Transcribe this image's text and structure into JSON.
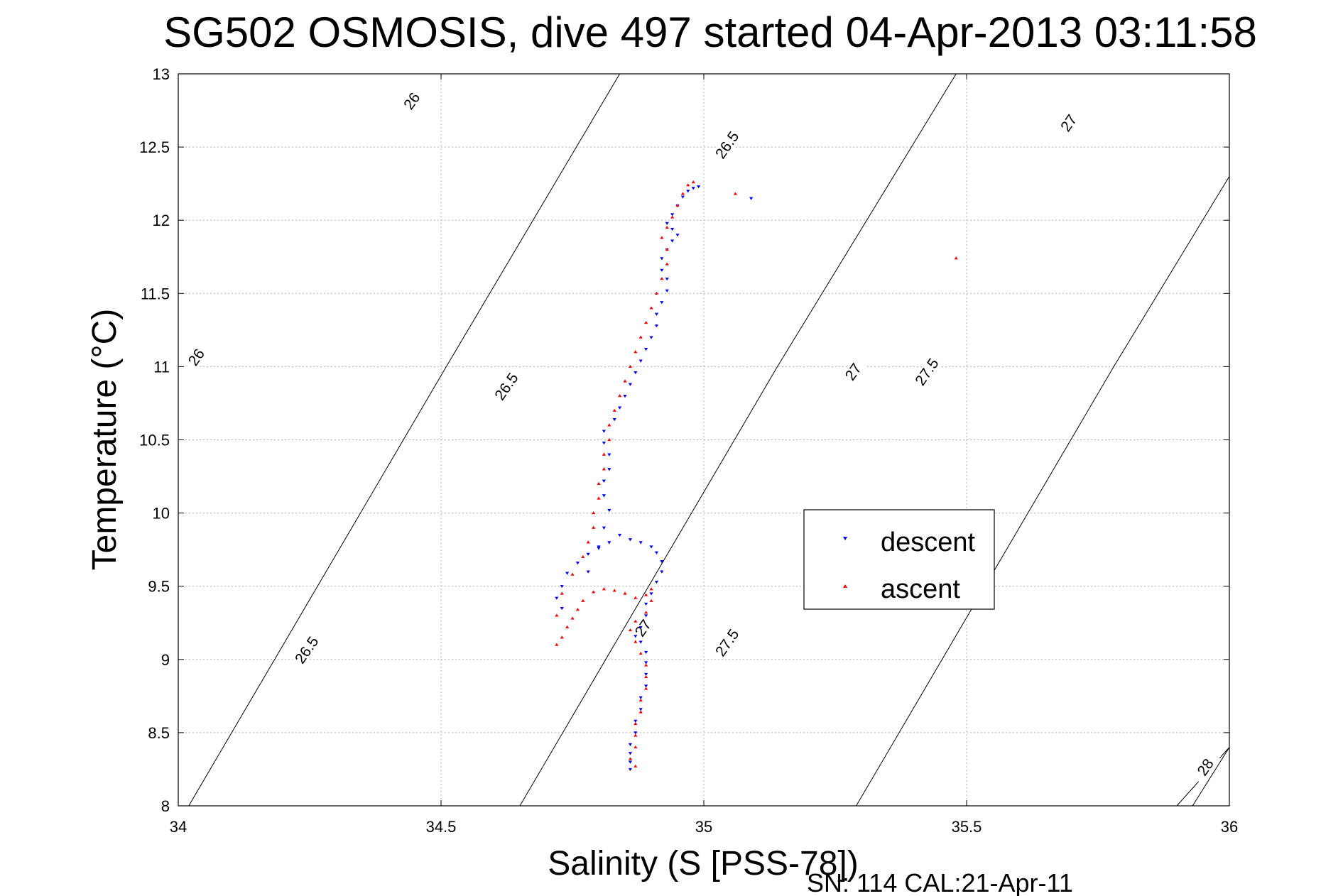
{
  "chart_data": {
    "type": "scatter",
    "title": "SG502 OSMOSIS, dive 497 started 04-Apr-2013 03:11:58",
    "xlabel": "Salinity (S [PSS-78])",
    "ylabel": "Temperature (°C)",
    "xlim": [
      34,
      36
    ],
    "ylim": [
      8,
      13
    ],
    "xticks": [
      "34",
      "34.5",
      "35",
      "35.5",
      "36"
    ],
    "yticks": [
      "8",
      "8.5",
      "9",
      "9.5",
      "10",
      "10.5",
      "11",
      "11.5",
      "12",
      "12.5",
      "13"
    ],
    "grid": true,
    "legend_position": "center-right",
    "footer": "SN: 114  CAL:21-Apr-11",
    "isopycnals": [
      {
        "sigma": 26.0,
        "label": "26",
        "points": [
          [
            34.02,
            8.0
          ],
          [
            34.51,
            11.0
          ],
          [
            34.84,
            13.0
          ]
        ],
        "label_at": [
          [
            34.04,
            11.05
          ],
          [
            34.45,
            12.8
          ]
        ]
      },
      {
        "sigma": 26.5,
        "label": "26.5",
        "points": [
          [
            34.65,
            8.0
          ],
          [
            35.14,
            11.0
          ],
          [
            35.48,
            13.0
          ]
        ],
        "label_at": [
          [
            34.25,
            9.05
          ],
          [
            34.63,
            10.85
          ],
          [
            35.05,
            12.5
          ]
        ]
      },
      {
        "sigma": 27.0,
        "label": "27",
        "points": [
          [
            35.29,
            8.0
          ],
          [
            35.78,
            11.0
          ],
          [
            36.0,
            12.3
          ]
        ],
        "label_at": [
          [
            34.89,
            9.2
          ],
          [
            35.29,
            10.95
          ],
          [
            35.7,
            12.65
          ]
        ]
      },
      {
        "sigma": 27.5,
        "label": "27.5",
        "points": [
          [
            35.93,
            8.0
          ],
          [
            36.0,
            8.4
          ]
        ],
        "label_at": [
          [
            35.05,
            9.1
          ],
          [
            35.43,
            10.95
          ]
        ]
      },
      {
        "sigma": 28.0,
        "label": "28",
        "points": [
          [
            35.9,
            8.0
          ],
          [
            36.0,
            8.4
          ]
        ],
        "label_at": [
          [
            35.96,
            8.25
          ]
        ]
      }
    ],
    "series": [
      {
        "name": "descent",
        "color": "#0000ff",
        "marker": "triangle-down",
        "points": [
          [
            34.86,
            8.25
          ],
          [
            34.86,
            8.3
          ],
          [
            34.86,
            8.36
          ],
          [
            34.86,
            8.42
          ],
          [
            34.87,
            8.5
          ],
          [
            34.87,
            8.58
          ],
          [
            34.88,
            8.66
          ],
          [
            34.88,
            8.74
          ],
          [
            34.89,
            8.82
          ],
          [
            34.89,
            8.9
          ],
          [
            34.89,
            8.98
          ],
          [
            34.89,
            9.05
          ],
          [
            34.88,
            9.12
          ],
          [
            34.87,
            9.16
          ],
          [
            34.88,
            9.22
          ],
          [
            34.89,
            9.3
          ],
          [
            34.89,
            9.38
          ],
          [
            34.9,
            9.45
          ],
          [
            34.91,
            9.53
          ],
          [
            34.92,
            9.6
          ],
          [
            34.92,
            9.67
          ],
          [
            34.91,
            9.73
          ],
          [
            34.9,
            9.77
          ],
          [
            34.88,
            9.8
          ],
          [
            34.86,
            9.82
          ],
          [
            34.84,
            9.85
          ],
          [
            34.82,
            9.8
          ],
          [
            34.8,
            9.76
          ],
          [
            34.78,
            9.72
          ],
          [
            34.76,
            9.66
          ],
          [
            34.74,
            9.59
          ],
          [
            34.73,
            9.5
          ],
          [
            34.72,
            9.42
          ],
          [
            34.73,
            9.35
          ],
          [
            34.78,
            9.6
          ],
          [
            34.8,
            9.77
          ],
          [
            34.81,
            9.9
          ],
          [
            34.82,
            10.02
          ],
          [
            34.81,
            10.12
          ],
          [
            34.81,
            10.22
          ],
          [
            34.82,
            10.3
          ],
          [
            34.82,
            10.4
          ],
          [
            34.81,
            10.48
          ],
          [
            34.81,
            10.56
          ],
          [
            34.83,
            10.64
          ],
          [
            34.84,
            10.72
          ],
          [
            34.85,
            10.8
          ],
          [
            34.86,
            10.88
          ],
          [
            34.87,
            10.96
          ],
          [
            34.88,
            11.04
          ],
          [
            34.89,
            11.12
          ],
          [
            34.9,
            11.2
          ],
          [
            34.91,
            11.28
          ],
          [
            34.91,
            11.36
          ],
          [
            34.92,
            11.44
          ],
          [
            34.93,
            11.52
          ],
          [
            34.93,
            11.6
          ],
          [
            34.92,
            11.66
          ],
          [
            34.92,
            11.74
          ],
          [
            34.93,
            11.8
          ],
          [
            34.94,
            11.86
          ],
          [
            34.95,
            11.9
          ],
          [
            34.94,
            11.94
          ],
          [
            34.93,
            11.98
          ],
          [
            34.94,
            12.04
          ],
          [
            34.95,
            12.1
          ],
          [
            34.96,
            12.16
          ],
          [
            34.97,
            12.2
          ],
          [
            34.98,
            12.22
          ],
          [
            34.99,
            12.23
          ],
          [
            35.09,
            12.15
          ]
        ]
      },
      {
        "name": "ascent",
        "color": "#ff0000",
        "marker": "triangle-up",
        "points": [
          [
            34.87,
            8.27
          ],
          [
            34.86,
            8.32
          ],
          [
            34.87,
            8.4
          ],
          [
            34.87,
            8.48
          ],
          [
            34.87,
            8.56
          ],
          [
            34.88,
            8.64
          ],
          [
            34.88,
            8.72
          ],
          [
            34.89,
            8.8
          ],
          [
            34.89,
            8.88
          ],
          [
            34.89,
            8.96
          ],
          [
            34.88,
            9.04
          ],
          [
            34.87,
            9.12
          ],
          [
            34.86,
            9.2
          ],
          [
            34.87,
            9.26
          ],
          [
            34.89,
            9.32
          ],
          [
            34.9,
            9.4
          ],
          [
            34.9,
            9.48
          ],
          [
            34.89,
            9.44
          ],
          [
            34.87,
            9.42
          ],
          [
            34.85,
            9.45
          ],
          [
            34.83,
            9.47
          ],
          [
            34.81,
            9.48
          ],
          [
            34.79,
            9.46
          ],
          [
            34.77,
            9.4
          ],
          [
            34.76,
            9.34
          ],
          [
            34.75,
            9.28
          ],
          [
            34.74,
            9.22
          ],
          [
            34.73,
            9.15
          ],
          [
            34.72,
            9.1
          ],
          [
            34.72,
            9.3
          ],
          [
            34.73,
            9.45
          ],
          [
            34.75,
            9.58
          ],
          [
            34.77,
            9.7
          ],
          [
            34.78,
            9.8
          ],
          [
            34.79,
            9.9
          ],
          [
            34.79,
            10.0
          ],
          [
            34.8,
            10.1
          ],
          [
            34.8,
            10.2
          ],
          [
            34.81,
            10.3
          ],
          [
            34.81,
            10.4
          ],
          [
            34.82,
            10.5
          ],
          [
            34.82,
            10.6
          ],
          [
            34.83,
            10.7
          ],
          [
            34.84,
            10.8
          ],
          [
            34.85,
            10.9
          ],
          [
            34.86,
            11.0
          ],
          [
            34.87,
            11.1
          ],
          [
            34.88,
            11.2
          ],
          [
            34.89,
            11.3
          ],
          [
            34.9,
            11.4
          ],
          [
            34.91,
            11.5
          ],
          [
            34.92,
            11.6
          ],
          [
            34.93,
            11.7
          ],
          [
            34.93,
            11.8
          ],
          [
            34.92,
            11.88
          ],
          [
            34.93,
            11.95
          ],
          [
            34.94,
            12.02
          ],
          [
            34.95,
            12.1
          ],
          [
            34.96,
            12.18
          ],
          [
            34.97,
            12.24
          ],
          [
            34.98,
            12.26
          ],
          [
            35.06,
            12.18
          ],
          [
            35.48,
            11.74
          ]
        ]
      }
    ]
  }
}
